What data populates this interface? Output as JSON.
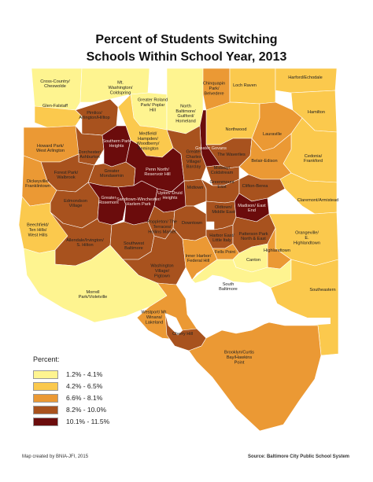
{
  "title_line1": "Percent of Students Switching",
  "title_line2": "Schools Within School Year, 2013",
  "legend": {
    "title": "Percent:",
    "items": [
      {
        "label": "1.2% - 4.1%",
        "color": "#fef490"
      },
      {
        "label": "4.2% - 6.5%",
        "color": "#fbc94d"
      },
      {
        "label": "6.6% - 8.1%",
        "color": "#eb9934"
      },
      {
        "label": "8.2% - 10.0%",
        "color": "#a8521e"
      },
      {
        "label": "10.1% - 11.5%",
        "color": "#6b0c0c"
      }
    ]
  },
  "credit": "Map created by BNIA-JFI, 2015",
  "source": "Source: Baltimore City Public School System",
  "neighborhoods": [
    {
      "name": "Cross-Country/ Cheswolde",
      "cls": 0
    },
    {
      "name": "Mt. Washington/ Coldspring",
      "cls": 0
    },
    {
      "name": "Glen-Falstaff",
      "cls": 1
    },
    {
      "name": "Greater Roland Park/ Poplar Hill",
      "cls": 0
    },
    {
      "name": "North Baltimore/ Guilford/ Homeland",
      "cls": 0
    },
    {
      "name": "Chinquapin Park/ Belvedere",
      "cls": 2
    },
    {
      "name": "Loch Raven",
      "cls": 1
    },
    {
      "name": "Harford/Echodale",
      "cls": 1
    },
    {
      "name": "Hamilton",
      "cls": 1
    },
    {
      "name": "Pimlico/ Arlington/Hilltop",
      "cls": 3
    },
    {
      "name": "Medfield/ Hampden/ Woodberry/ Remington",
      "cls": 1
    },
    {
      "name": "Northwood",
      "cls": 1
    },
    {
      "name": "Lauraville",
      "cls": 2
    },
    {
      "name": "Cedonia/ Frankford",
      "cls": 1
    },
    {
      "name": "Howard Park/ West Arlington",
      "cls": 2
    },
    {
      "name": "Dorchester/ Ashburton",
      "cls": 3
    },
    {
      "name": "Southern Park Heights",
      "cls": 4
    },
    {
      "name": "Greater Govans",
      "cls": 4
    },
    {
      "name": "The Waverlies",
      "cls": 3
    },
    {
      "name": "Belair-Edison",
      "cls": 2
    },
    {
      "name": "Forest Park/ Walbrook",
      "cls": 3
    },
    {
      "name": "Greater Mondawmin",
      "cls": 3
    },
    {
      "name": "Penn North/ Reservoir Hill",
      "cls": 4
    },
    {
      "name": "Greater Charles Village/ Barclay",
      "cls": 3
    },
    {
      "name": "Midway/ Coldstream",
      "cls": 3
    },
    {
      "name": "Claremont/Armistead",
      "cls": 1
    },
    {
      "name": "Dickeyville/ Franklintown",
      "cls": 2
    },
    {
      "name": "Edmondson Village",
      "cls": 3
    },
    {
      "name": "Greater Rosemont",
      "cls": 4
    },
    {
      "name": "Sandtown-Winchester/ Harlem Park",
      "cls": 4
    },
    {
      "name": "Upton/ Druid Heights",
      "cls": 4
    },
    {
      "name": "Midtown",
      "cls": 3
    },
    {
      "name": "Greenmount East",
      "cls": 3
    },
    {
      "name": "Clifton-Berea",
      "cls": 3
    },
    {
      "name": "Oldtown/ Middle East",
      "cls": 3
    },
    {
      "name": "Madison/ East End",
      "cls": 4
    },
    {
      "name": "Beechfield/ Ten Hills/ West Hills",
      "cls": 1
    },
    {
      "name": "Allendale/Irvington/ S. Hilton",
      "cls": 3
    },
    {
      "name": "Southwest Baltimore",
      "cls": 3
    },
    {
      "name": "Poppleton/ The Terraces/ Hollins Market",
      "cls": 3
    },
    {
      "name": "Downtown",
      "cls": 3
    },
    {
      "name": "Harbor East/ Little Italy",
      "cls": 3
    },
    {
      "name": "Fells Point",
      "cls": 2
    },
    {
      "name": "Patterson Park North & East",
      "cls": 3
    },
    {
      "name": "Orangeville/ E. Highlandtown",
      "cls": 1
    },
    {
      "name": "Highlandtown",
      "cls": 2
    },
    {
      "name": "Canton",
      "cls": 0
    },
    {
      "name": "Washington Village/ Pigtown",
      "cls": 3
    },
    {
      "name": "Inner Harbor/ Federal Hill",
      "cls": 2
    },
    {
      "name": "Morrell Park/Violetville",
      "cls": 0
    },
    {
      "name": "South Baltimore",
      "cls": 0
    },
    {
      "name": "Southeastern",
      "cls": 1
    },
    {
      "name": "Westport/ Mt. Winans/ Lakeland",
      "cls": 2
    },
    {
      "name": "Cherry Hill",
      "cls": 3
    },
    {
      "name": "Brooklyn/Curtis Bay/Hawkins Point",
      "cls": 2
    }
  ]
}
